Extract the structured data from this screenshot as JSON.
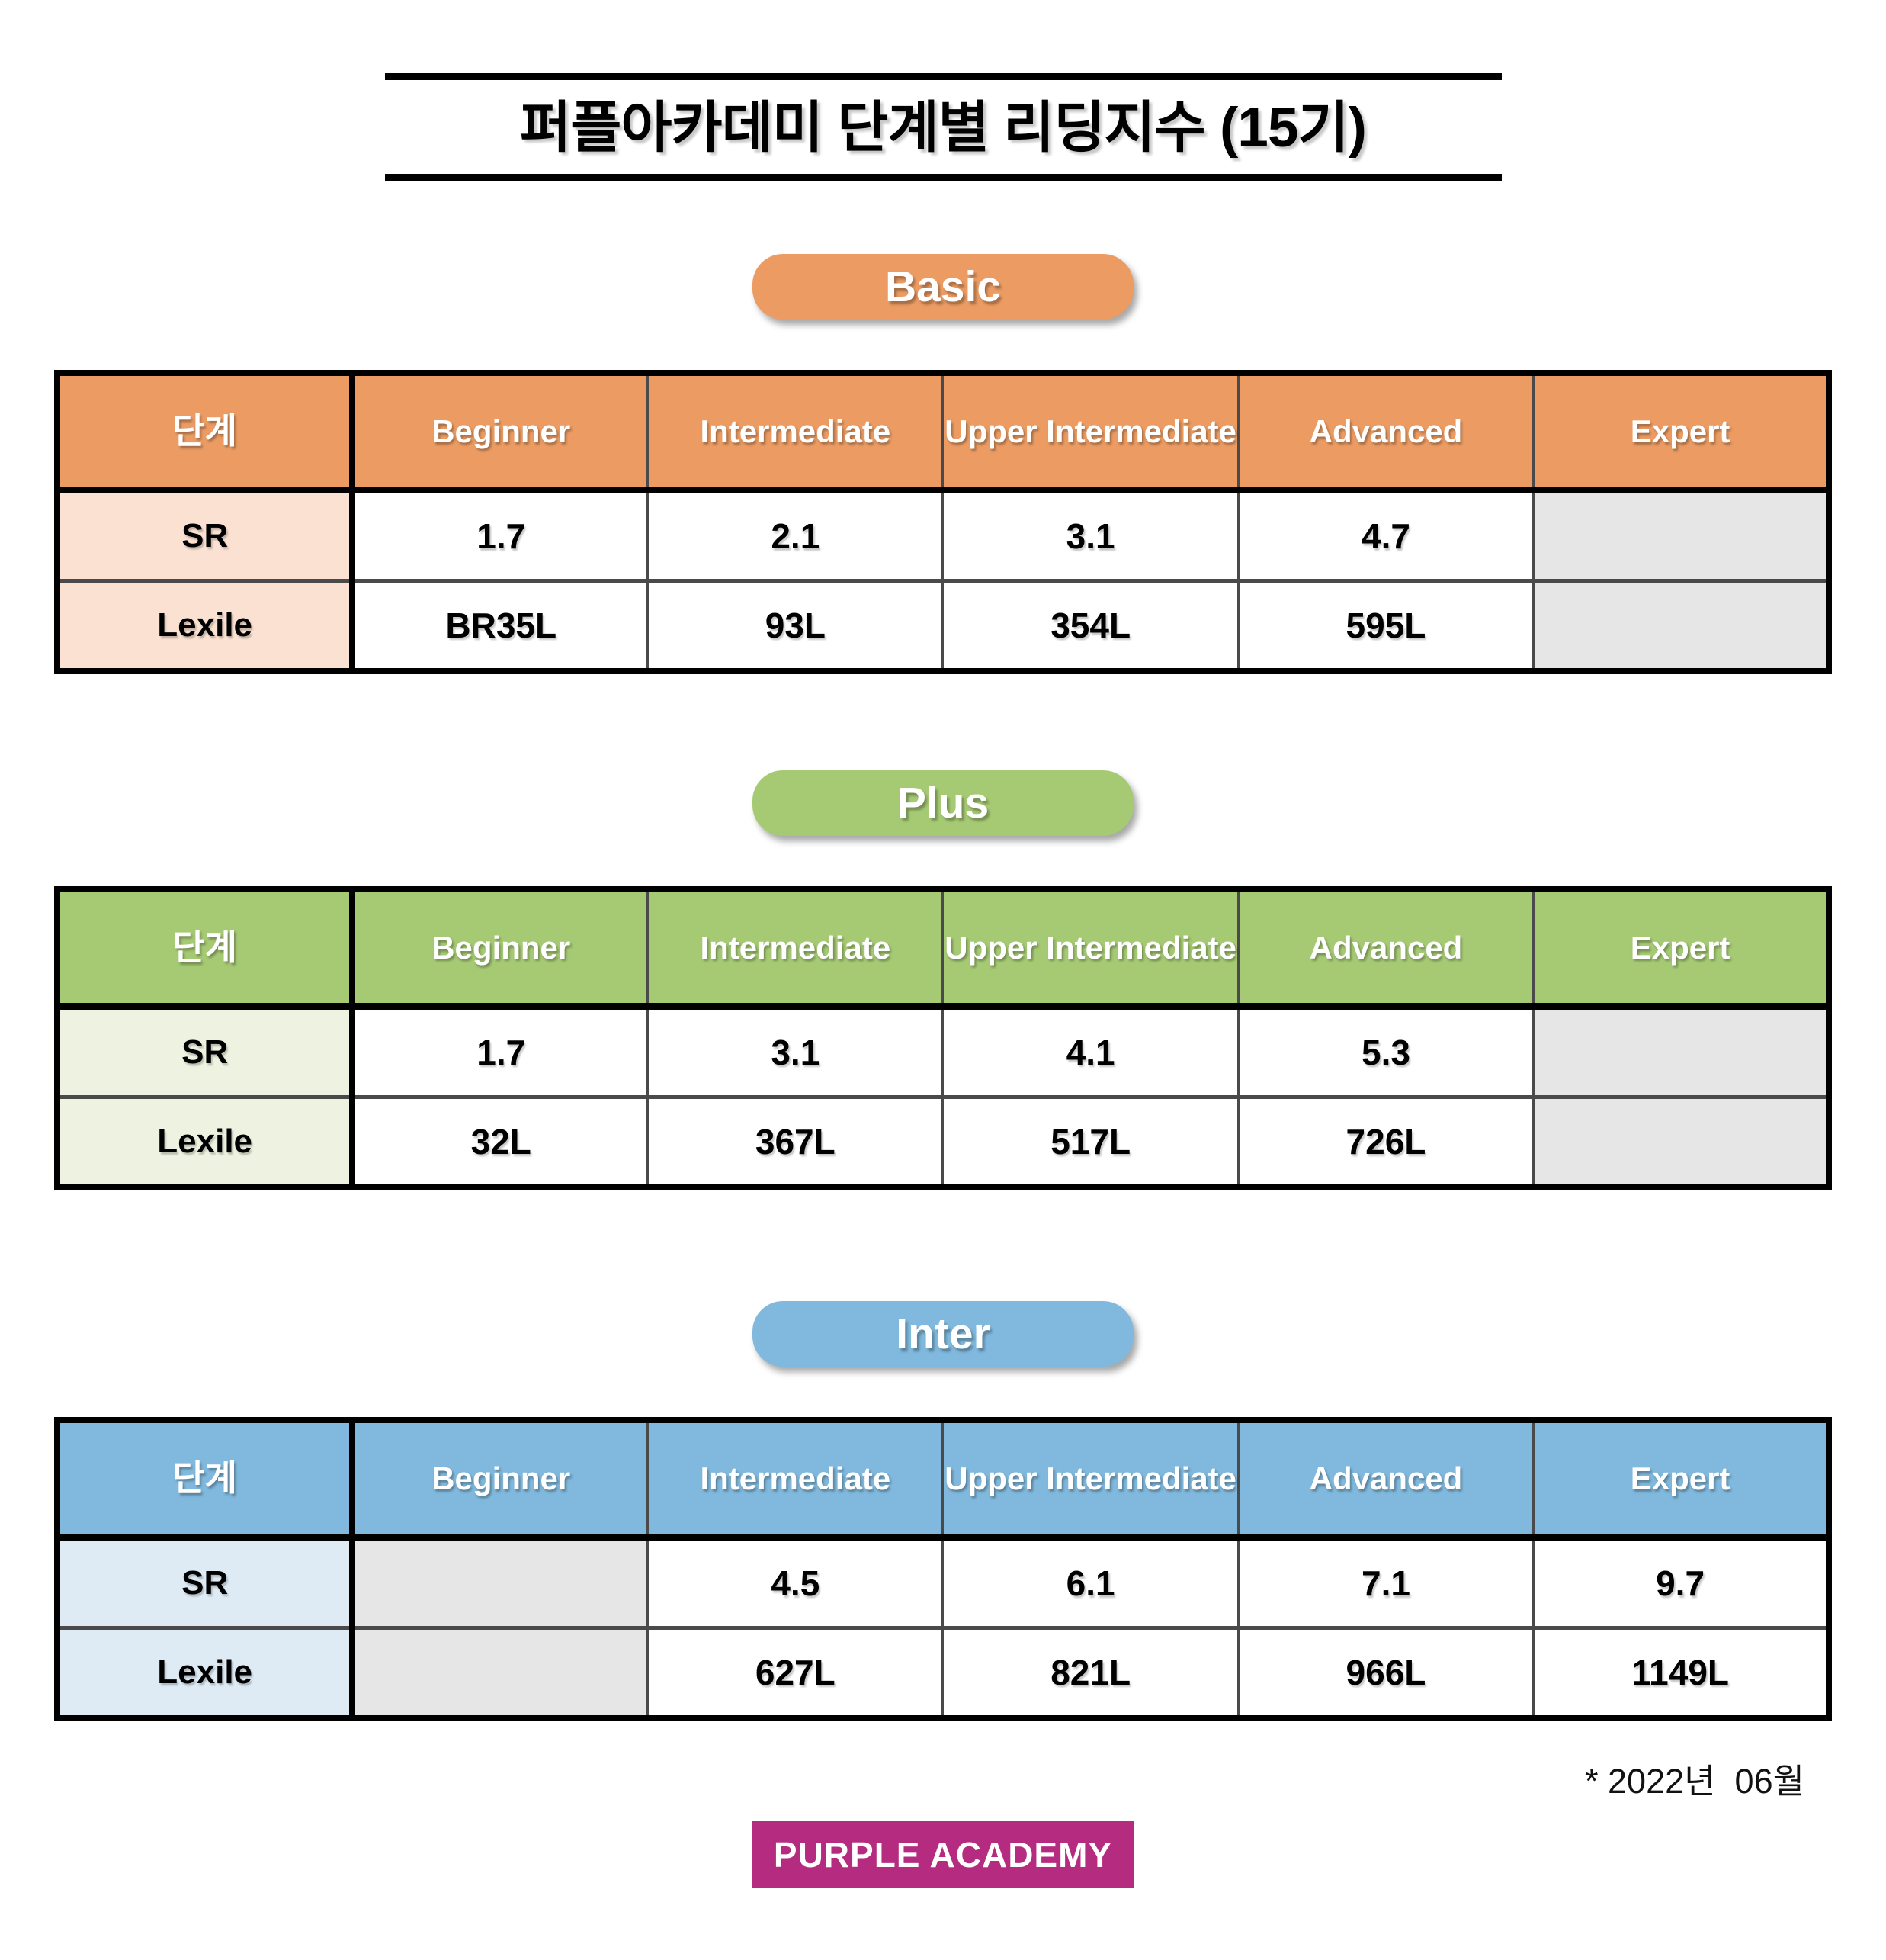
{
  "page": {
    "title": "퍼플아카데미 단계별 리딩지수 (15기)",
    "footnote": "* 2022년  06월",
    "logo_text": "PURPLE ACADEMY"
  },
  "colors": {
    "logo_bg": "#B42B7F",
    "table_border": "#000000",
    "inner_border": "#4A4A4A",
    "empty_cell": "#E7E6E6"
  },
  "sections": [
    {
      "badge": "Basic",
      "colors": {
        "badge_bg": "#EC9C63",
        "header_bg": "#EC9C63",
        "label_bg": "#FAE1D1",
        "empty_bg": "#E7E6E6"
      },
      "columns": [
        "단계",
        "Beginner",
        "Intermediate",
        "Upper Intermediate",
        "Advanced",
        "Expert"
      ],
      "rows": [
        {
          "label": "SR",
          "values": [
            "1.7",
            "2.1",
            "3.1",
            "4.7",
            ""
          ]
        },
        {
          "label": "Lexile",
          "values": [
            "BR35L",
            "93L",
            "354L",
            "595L",
            ""
          ]
        }
      ]
    },
    {
      "badge": "Plus",
      "colors": {
        "badge_bg": "#A6CA74",
        "header_bg": "#A6CA74",
        "label_bg": "#EDF3E0",
        "empty_bg": "#E7E6E6"
      },
      "columns": [
        "단계",
        "Beginner",
        "Intermediate",
        "Upper Intermediate",
        "Advanced",
        "Expert"
      ],
      "rows": [
        {
          "label": "SR",
          "values": [
            "1.7",
            "3.1",
            "4.1",
            "5.3",
            ""
          ]
        },
        {
          "label": "Lexile",
          "values": [
            "32L",
            "367L",
            "517L",
            "726L",
            ""
          ]
        }
      ]
    },
    {
      "badge": "Inter",
      "colors": {
        "badge_bg": "#80B9DD",
        "header_bg": "#80B9DD",
        "label_bg": "#DEEBF5",
        "empty_bg": "#E7E6E6"
      },
      "columns": [
        "단계",
        "Beginner",
        "Intermediate",
        "Upper Intermediate",
        "Advanced",
        "Expert"
      ],
      "rows": [
        {
          "label": "SR",
          "values": [
            "",
            "4.5",
            "6.1",
            "7.1",
            "9.7"
          ]
        },
        {
          "label": "Lexile",
          "values": [
            "",
            "627L",
            "821L",
            "966L",
            "1149L"
          ]
        }
      ]
    }
  ]
}
